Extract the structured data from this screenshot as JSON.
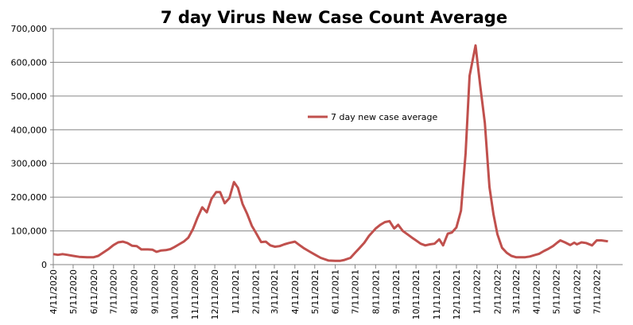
{
  "chart_data": {
    "type": "line",
    "title": "7 day Virus New Case Count Average",
    "xlabel": "",
    "ylabel": "",
    "ylim": [
      0,
      700000
    ],
    "xlim": [
      "2020-04-11",
      "2022-07-31"
    ],
    "grid": true,
    "legend_position": "center-right",
    "line_color": "#C0504D",
    "y_ticks": [
      "0",
      "100,000",
      "200,000",
      "300,000",
      "400,000",
      "500,000",
      "600,000",
      "700,000"
    ],
    "x_ticks": [
      "4/11/2020",
      "5/11/2020",
      "6/11/2020",
      "7/11/2020",
      "8/11/2020",
      "9/11/2020",
      "10/11/2020",
      "11/11/2020",
      "12/11/2020",
      "1/11/2021",
      "2/11/2021",
      "3/11/2021",
      "4/11/2021",
      "5/11/2021",
      "6/11/2021",
      "7/11/2021",
      "8/11/2021",
      "9/11/2021",
      "10/11/2021",
      "11/11/2021",
      "12/11/2021",
      "1/11/2022",
      "2/11/2022",
      "3/11/2022",
      "4/11/2022",
      "5/11/2022",
      "6/11/2022",
      "7/11/2022"
    ],
    "series": [
      {
        "name": "7 day new case average",
        "x": [
          "2020-04-11",
          "2020-04-18",
          "2020-04-25",
          "2020-05-02",
          "2020-05-11",
          "2020-05-20",
          "2020-06-01",
          "2020-06-11",
          "2020-06-18",
          "2020-06-25",
          "2020-07-04",
          "2020-07-11",
          "2020-07-18",
          "2020-07-25",
          "2020-08-01",
          "2020-08-08",
          "2020-08-15",
          "2020-08-22",
          "2020-09-01",
          "2020-09-08",
          "2020-09-14",
          "2020-09-21",
          "2020-09-28",
          "2020-10-05",
          "2020-10-11",
          "2020-10-18",
          "2020-10-25",
          "2020-11-01",
          "2020-11-08",
          "2020-11-15",
          "2020-11-22",
          "2020-11-29",
          "2020-12-06",
          "2020-12-13",
          "2020-12-19",
          "2020-12-26",
          "2021-01-02",
          "2021-01-09",
          "2021-01-15",
          "2021-01-22",
          "2021-01-29",
          "2021-02-05",
          "2021-02-11",
          "2021-02-19",
          "2021-02-26",
          "2021-03-05",
          "2021-03-12",
          "2021-03-19",
          "2021-03-26",
          "2021-04-02",
          "2021-04-11",
          "2021-04-18",
          "2021-04-25",
          "2021-05-02",
          "2021-05-11",
          "2021-05-20",
          "2021-06-01",
          "2021-06-11",
          "2021-06-18",
          "2021-06-25",
          "2021-07-04",
          "2021-07-11",
          "2021-07-18",
          "2021-07-25",
          "2021-08-01",
          "2021-08-11",
          "2021-08-18",
          "2021-08-25",
          "2021-09-01",
          "2021-09-08",
          "2021-09-14",
          "2021-09-21",
          "2021-09-28",
          "2021-10-05",
          "2021-10-11",
          "2021-10-18",
          "2021-10-25",
          "2021-11-01",
          "2021-11-08",
          "2021-11-15",
          "2021-11-21",
          "2021-11-28",
          "2021-12-04",
          "2021-12-11",
          "2021-12-18",
          "2021-12-25",
          "2021-12-31",
          "2022-01-09",
          "2022-01-16",
          "2022-01-23",
          "2022-01-30",
          "2022-02-05",
          "2022-02-11",
          "2022-02-18",
          "2022-02-25",
          "2022-03-04",
          "2022-03-11",
          "2022-03-18",
          "2022-03-25",
          "2022-04-01",
          "2022-04-08",
          "2022-04-15",
          "2022-04-22",
          "2022-04-29",
          "2022-05-06",
          "2022-05-13",
          "2022-05-17",
          "2022-05-24",
          "2022-06-01",
          "2022-06-07",
          "2022-06-11",
          "2022-06-18",
          "2022-06-25",
          "2022-07-04",
          "2022-07-11",
          "2022-07-18",
          "2022-07-28"
        ],
        "values": [
          31000,
          29000,
          31000,
          29000,
          26000,
          23000,
          22000,
          22000,
          26000,
          35000,
          47000,
          58000,
          66000,
          68000,
          64000,
          56000,
          55000,
          45000,
          45000,
          44000,
          38000,
          42000,
          43000,
          46000,
          52000,
          60000,
          68000,
          80000,
          105000,
          140000,
          170000,
          155000,
          195000,
          215000,
          215000,
          182000,
          197000,
          245000,
          228000,
          180000,
          150000,
          115000,
          95000,
          67000,
          68000,
          57000,
          53000,
          55000,
          60000,
          64000,
          68000,
          58000,
          48000,
          40000,
          30000,
          20000,
          12000,
          11000,
          11000,
          14000,
          20000,
          35000,
          50000,
          65000,
          85000,
          107000,
          118000,
          126000,
          129000,
          107000,
          118000,
          100000,
          90000,
          80000,
          72000,
          62000,
          57000,
          60000,
          62000,
          75000,
          57000,
          92000,
          95000,
          110000,
          160000,
          330000,
          560000,
          650000,
          530000,
          420000,
          230000,
          150000,
          90000,
          50000,
          35000,
          26000,
          22000,
          22000,
          22000,
          24000,
          28000,
          32000,
          40000,
          47000,
          55000,
          66000,
          72000,
          66000,
          58000,
          65000,
          60000,
          66000,
          64000,
          57000,
          72000,
          72000,
          69000
        ]
      }
    ]
  }
}
